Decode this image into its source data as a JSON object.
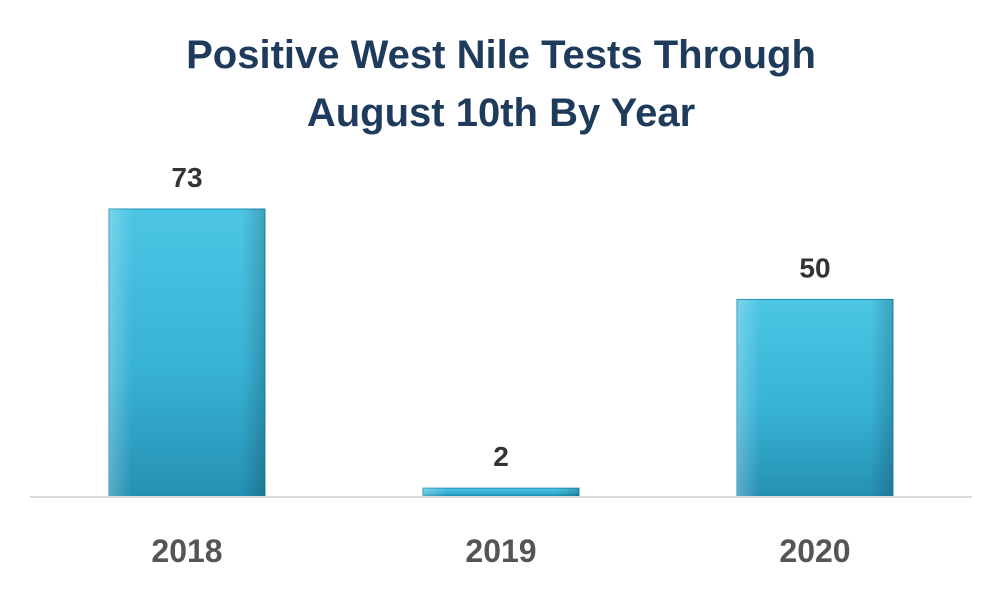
{
  "chart_data": {
    "type": "bar",
    "title_lines": [
      "Positive West Nile Tests Through",
      "August 10th By Year"
    ],
    "categories": [
      "2018",
      "2019",
      "2020"
    ],
    "values": [
      73,
      2,
      50
    ],
    "ylim": [
      0,
      73
    ],
    "grid": false,
    "legend": "none",
    "bar_color": "#3bb8d8",
    "bar_color_dark": "#1f8fb0",
    "axis_color": "#d9d9d9"
  }
}
